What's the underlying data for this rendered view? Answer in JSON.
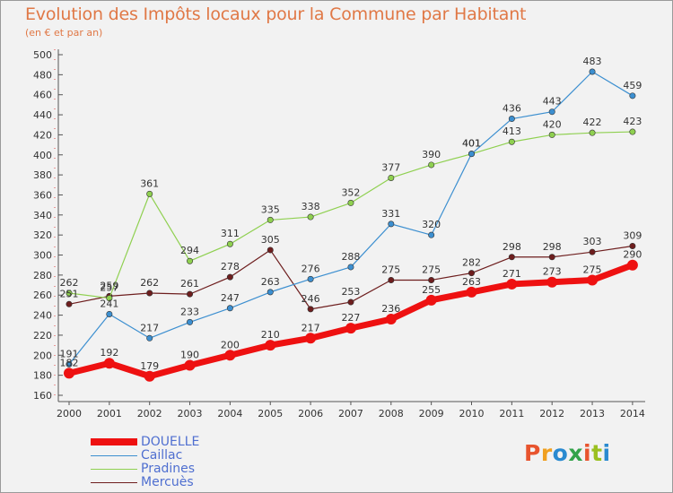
{
  "header": {
    "title": "Evolution des Impôts locaux pour la Commune par Habitant",
    "subtitle": "(en € et par an)"
  },
  "logo": {
    "text": "Proxiti",
    "colors": [
      "#e8542e",
      "#f0a020",
      "#2a8ad0",
      "#33a34a",
      "#e8542e",
      "#9ac020",
      "#2a8ad0"
    ]
  },
  "chart_data": {
    "type": "line",
    "x": [
      "2000",
      "2001",
      "2002",
      "2003",
      "2004",
      "2005",
      "2006",
      "2007",
      "2008",
      "2009",
      "2010",
      "2011",
      "2012",
      "2013",
      "2014"
    ],
    "ylim": [
      160,
      500
    ],
    "yticks": [
      160,
      180,
      200,
      220,
      240,
      260,
      280,
      300,
      320,
      340,
      360,
      380,
      400,
      420,
      440,
      460,
      480,
      500
    ],
    "grid": false,
    "legend": "bottom-left",
    "series": [
      {
        "name": "DOUELLE",
        "color": "#ee1111",
        "values": [
          182,
          192,
          179,
          190,
          200,
          210,
          217,
          227,
          236,
          255,
          263,
          271,
          273,
          275,
          290
        ]
      },
      {
        "name": "Caillac",
        "color": "#3c8fd0",
        "values": [
          191,
          241,
          217,
          233,
          247,
          263,
          276,
          288,
          331,
          320,
          401,
          436,
          443,
          483,
          459
        ]
      },
      {
        "name": "Pradines",
        "color": "#8fd050",
        "values": [
          262,
          257,
          361,
          294,
          311,
          335,
          338,
          352,
          377,
          390,
          401,
          413,
          420,
          422,
          423
        ]
      },
      {
        "name": "Mercuès",
        "color": "#6e1e1e",
        "values": [
          251,
          259,
          262,
          261,
          278,
          305,
          246,
          253,
          275,
          275,
          282,
          298,
          298,
          303,
          309
        ]
      }
    ]
  }
}
